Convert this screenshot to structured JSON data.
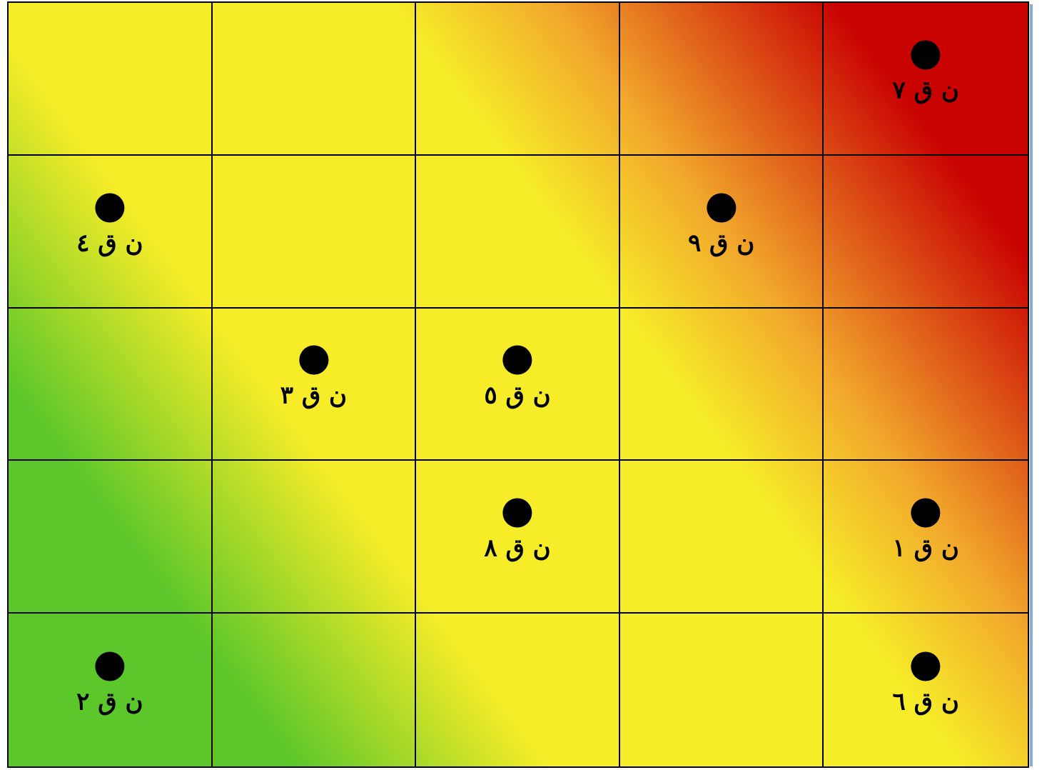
{
  "grid": {
    "rows": 5,
    "columns": 5,
    "colors": {
      "low": "#5cc72a",
      "mid": "#f6ec28",
      "high": "#c90202",
      "lines": "#000000",
      "marker": "#000000"
    }
  },
  "markers": [
    {
      "row": 1,
      "col": 5,
      "label": "ن ق ٧"
    },
    {
      "row": 2,
      "col": 1,
      "label": "ن ق ٤"
    },
    {
      "row": 2,
      "col": 4,
      "label": "ن ق ٩"
    },
    {
      "row": 3,
      "col": 2,
      "label": "ن ق ٣"
    },
    {
      "row": 3,
      "col": 3,
      "label": "ن ق ٥"
    },
    {
      "row": 4,
      "col": 3,
      "label": "ن ق ٨"
    },
    {
      "row": 4,
      "col": 5,
      "label": "ن ق ١"
    },
    {
      "row": 5,
      "col": 1,
      "label": "ن ق ٢"
    },
    {
      "row": 5,
      "col": 5,
      "label": "ن ق ٦"
    }
  ]
}
